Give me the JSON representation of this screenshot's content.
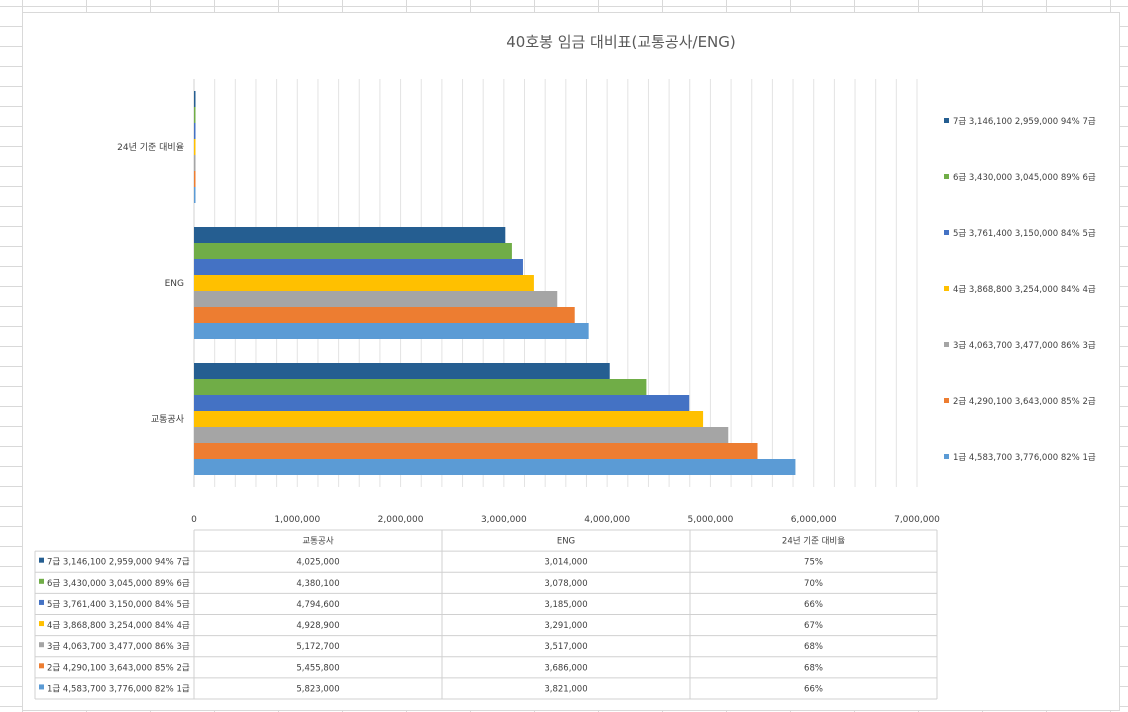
{
  "chart_data": {
    "type": "bar",
    "orientation": "horizontal",
    "title": "40호봉 임금 대비표(교통공사/ENG)",
    "categories": [
      "교통공사",
      "ENG",
      "24년 기준 대비율"
    ],
    "series": [
      {
        "name": "1급 4,583,700  3,776,000  82% 1급",
        "color": "#5b9bd5",
        "values": [
          5823000,
          3821000,
          0.66
        ],
        "table": [
          "5,823,000",
          "3,821,000",
          "66%"
        ]
      },
      {
        "name": "2급 4,290,100  3,643,000  85% 2급",
        "color": "#ed7d31",
        "values": [
          5455800,
          3686000,
          0.68
        ],
        "table": [
          "5,455,800",
          "3,686,000",
          "68%"
        ]
      },
      {
        "name": "3급 4,063,700  3,477,000  86% 3급",
        "color": "#a5a5a5",
        "values": [
          5172700,
          3517000,
          0.68
        ],
        "table": [
          "5,172,700",
          "3,517,000",
          "68%"
        ]
      },
      {
        "name": "4급 3,868,800  3,254,000  84% 4급",
        "color": "#ffc000",
        "values": [
          4928900,
          3291000,
          0.67
        ],
        "table": [
          "4,928,900",
          "3,291,000",
          "67%"
        ]
      },
      {
        "name": "5급 3,761,400  3,150,000  84% 5급",
        "color": "#4472c4",
        "values": [
          4794600,
          3185000,
          0.66
        ],
        "table": [
          "4,794,600",
          "3,185,000",
          "66%"
        ]
      },
      {
        "name": "6급 3,430,000  3,045,000  89% 6급",
        "color": "#70ad47",
        "values": [
          4380100,
          3078000,
          0.7
        ],
        "table": [
          "4,380,100",
          "3,078,000",
          "70%"
        ]
      },
      {
        "name": "7급 3,146,100  2,959,000  94% 7급",
        "color": "#255e91",
        "values": [
          4025000,
          3014000,
          0.75
        ],
        "table": [
          "4,025,000",
          "3,014,000",
          "75%"
        ]
      }
    ],
    "xlim": [
      0,
      7000000
    ],
    "x_ticks": [
      "0",
      "1,000,000",
      "2,000,000",
      "3,000,000",
      "4,000,000",
      "5,000,000",
      "6,000,000",
      "7,000,000"
    ],
    "x_tick_values": [
      0,
      1000000,
      2000000,
      3000000,
      4000000,
      5000000,
      6000000,
      7000000
    ],
    "grid": true,
    "legend_position": "right",
    "data_table": true
  }
}
